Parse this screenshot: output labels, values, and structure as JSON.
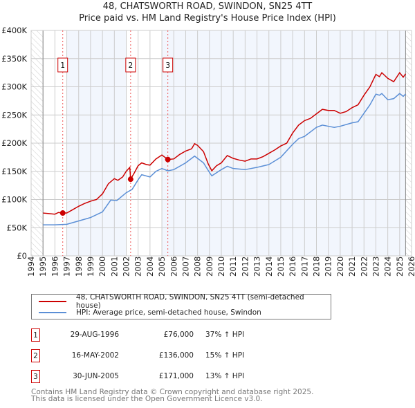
{
  "chart_data": {
    "type": "line",
    "title": "48, CHATSWORTH ROAD, SWINDON, SN25 4TT",
    "subtitle": "Price paid vs. HM Land Registry's House Price Index (HPI)",
    "xlim": [
      1994,
      2026
    ],
    "ylim": [
      0,
      400000
    ],
    "yticks": [
      {
        "v": 0,
        "label": "£0"
      },
      {
        "v": 50000,
        "label": "£50K"
      },
      {
        "v": 100000,
        "label": "£100K"
      },
      {
        "v": 150000,
        "label": "£150K"
      },
      {
        "v": 200000,
        "label": "£200K"
      },
      {
        "v": 250000,
        "label": "£250K"
      },
      {
        "v": 300000,
        "label": "£300K"
      },
      {
        "v": 350000,
        "label": "£350K"
      },
      {
        "v": 400000,
        "label": "£400K"
      }
    ],
    "xticks": [
      1994,
      1995,
      1996,
      1997,
      1998,
      1999,
      2000,
      2001,
      2002,
      2003,
      2004,
      2005,
      2006,
      2007,
      2008,
      2009,
      2010,
      2011,
      2012,
      2013,
      2014,
      2015,
      2016,
      2017,
      2018,
      2019,
      2020,
      2021,
      2022,
      2023,
      2024,
      2025,
      2026
    ],
    "grid": true,
    "series": [
      {
        "name": "48, CHATSWORTH ROAD, SWINDON, SN25 4TT (semi-detached house)",
        "color": "#cc0000",
        "points": [
          [
            1995,
            76
          ],
          [
            1995.5,
            75
          ],
          [
            1996,
            74
          ],
          [
            1996.3,
            77
          ],
          [
            1996.66,
            76
          ],
          [
            1997,
            76
          ],
          [
            1997.5,
            82
          ],
          [
            1998,
            88
          ],
          [
            1998.5,
            93
          ],
          [
            1999,
            97
          ],
          [
            1999.5,
            100
          ],
          [
            2000,
            110
          ],
          [
            2000.5,
            128
          ],
          [
            2001,
            137
          ],
          [
            2001.3,
            134
          ],
          [
            2001.7,
            140
          ],
          [
            2002,
            150
          ],
          [
            2002.3,
            157
          ],
          [
            2002.37,
            136
          ],
          [
            2002.7,
            148
          ],
          [
            2003,
            160
          ],
          [
            2003.3,
            165
          ],
          [
            2003.7,
            162
          ],
          [
            2004,
            161
          ],
          [
            2004.5,
            172
          ],
          [
            2005,
            179
          ],
          [
            2005.5,
            171
          ],
          [
            2006,
            172
          ],
          [
            2006.5,
            180
          ],
          [
            2007,
            186
          ],
          [
            2007.5,
            190
          ],
          [
            2007.75,
            199
          ],
          [
            2008,
            196
          ],
          [
            2008.5,
            185
          ],
          [
            2008.9,
            163
          ],
          [
            2009.2,
            151
          ],
          [
            2009.6,
            160
          ],
          [
            2010,
            165
          ],
          [
            2010.5,
            178
          ],
          [
            2011,
            173
          ],
          [
            2011.5,
            170
          ],
          [
            2012,
            168
          ],
          [
            2012.5,
            172
          ],
          [
            2013,
            172
          ],
          [
            2013.5,
            176
          ],
          [
            2014,
            182
          ],
          [
            2014.5,
            188
          ],
          [
            2015,
            195
          ],
          [
            2015.5,
            200
          ],
          [
            2016,
            218
          ],
          [
            2016.5,
            232
          ],
          [
            2017,
            240
          ],
          [
            2017.5,
            244
          ],
          [
            2018,
            252
          ],
          [
            2018.5,
            260
          ],
          [
            2019,
            258
          ],
          [
            2019.5,
            258
          ],
          [
            2020,
            253
          ],
          [
            2020.5,
            256
          ],
          [
            2021,
            263
          ],
          [
            2021.5,
            268
          ],
          [
            2022,
            285
          ],
          [
            2022.5,
            300
          ],
          [
            2023,
            322
          ],
          [
            2023.3,
            318
          ],
          [
            2023.5,
            325
          ],
          [
            2024,
            315
          ],
          [
            2024.5,
            309
          ],
          [
            2025,
            325
          ],
          [
            2025.3,
            317
          ],
          [
            2025.5,
            323
          ]
        ]
      },
      {
        "name": "HPI: Average price, semi-detached house, Swindon",
        "color": "#5b8fd6",
        "points": [
          [
            1995,
            55
          ],
          [
            1996,
            55
          ],
          [
            1997,
            56
          ],
          [
            1998,
            62
          ],
          [
            1999,
            68
          ],
          [
            2000,
            78
          ],
          [
            2000.7,
            99
          ],
          [
            2001.2,
            98
          ],
          [
            2002,
            112
          ],
          [
            2002.5,
            118
          ],
          [
            2003,
            135
          ],
          [
            2003.3,
            144
          ],
          [
            2004,
            140
          ],
          [
            2004.5,
            150
          ],
          [
            2005,
            155
          ],
          [
            2005.5,
            151
          ],
          [
            2006,
            153
          ],
          [
            2007,
            165
          ],
          [
            2007.75,
            177
          ],
          [
            2008.5,
            165
          ],
          [
            2009,
            148
          ],
          [
            2009.2,
            142
          ],
          [
            2010,
            153
          ],
          [
            2010.5,
            159
          ],
          [
            2011,
            155
          ],
          [
            2012,
            153
          ],
          [
            2013,
            157
          ],
          [
            2014,
            162
          ],
          [
            2015,
            175
          ],
          [
            2016,
            198
          ],
          [
            2016.5,
            208
          ],
          [
            2017,
            212
          ],
          [
            2018,
            228
          ],
          [
            2018.5,
            232
          ],
          [
            2019,
            230
          ],
          [
            2019.5,
            228
          ],
          [
            2020,
            230
          ],
          [
            2021,
            236
          ],
          [
            2021.5,
            238
          ],
          [
            2022,
            253
          ],
          [
            2022.5,
            268
          ],
          [
            2023,
            287
          ],
          [
            2023.3,
            285
          ],
          [
            2023.5,
            288
          ],
          [
            2024,
            277
          ],
          [
            2024.5,
            279
          ],
          [
            2025,
            288
          ],
          [
            2025.3,
            283
          ],
          [
            2025.5,
            287
          ]
        ]
      }
    ],
    "value_unit": "thousand GBP",
    "sales": [
      {
        "n": "1",
        "year": 1996.66,
        "value": 76000,
        "date": "29-AUG-1996",
        "price": "£76,000",
        "hpi": "37% ↑ HPI"
      },
      {
        "n": "2",
        "year": 2002.37,
        "value": 136000,
        "date": "16-MAY-2002",
        "price": "£136,000",
        "hpi": "15% ↑ HPI"
      },
      {
        "n": "3",
        "year": 2005.5,
        "value": 171000,
        "date": "30-JUN-2005",
        "price": "£171,000",
        "hpi": "13% ↑ HPI"
      }
    ],
    "legend": "below"
  },
  "footer": [
    "Contains HM Land Registry data © Crown copyright and database right 2025.",
    "This data is licensed under the Open Government Licence v3.0."
  ]
}
